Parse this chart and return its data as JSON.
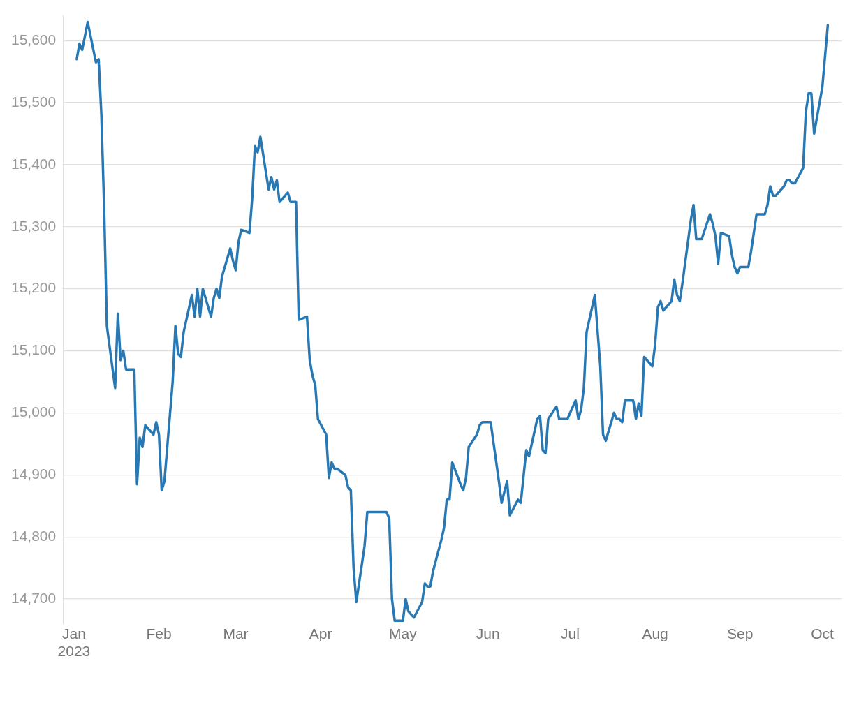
{
  "chart_data": {
    "type": "line",
    "x": [
      "2023-01-02",
      "2023-01-03",
      "2023-01-04",
      "2023-01-06",
      "2023-01-09",
      "2023-01-10",
      "2023-01-11",
      "2023-01-12",
      "2023-01-13",
      "2023-01-16",
      "2023-01-17",
      "2023-01-18",
      "2023-01-19",
      "2023-01-20",
      "2023-01-23",
      "2023-01-24",
      "2023-01-25",
      "2023-01-26",
      "2023-01-27",
      "2023-01-30",
      "2023-01-31",
      "2023-02-01",
      "2023-02-02",
      "2023-02-03",
      "2023-02-06",
      "2023-02-07",
      "2023-02-08",
      "2023-02-09",
      "2023-02-10",
      "2023-02-13",
      "2023-02-14",
      "2023-02-15",
      "2023-02-16",
      "2023-02-17",
      "2023-02-20",
      "2023-02-21",
      "2023-02-22",
      "2023-02-23",
      "2023-02-24",
      "2023-02-27",
      "2023-02-28",
      "2023-03-01",
      "2023-03-02",
      "2023-03-03",
      "2023-03-06",
      "2023-03-07",
      "2023-03-08",
      "2023-03-09",
      "2023-03-10",
      "2023-03-13",
      "2023-03-14",
      "2023-03-15",
      "2023-03-16",
      "2023-03-17",
      "2023-03-20",
      "2023-03-21",
      "2023-03-23",
      "2023-03-24",
      "2023-03-27",
      "2023-03-28",
      "2023-03-29",
      "2023-03-30",
      "2023-03-31",
      "2023-04-03",
      "2023-04-04",
      "2023-04-05",
      "2023-04-06",
      "2023-04-07",
      "2023-04-10",
      "2023-04-11",
      "2023-04-12",
      "2023-04-13",
      "2023-04-14",
      "2023-04-17",
      "2023-04-18",
      "2023-04-19",
      "2023-04-25",
      "2023-04-26",
      "2023-04-27",
      "2023-04-28",
      "2023-05-01",
      "2023-05-02",
      "2023-05-03",
      "2023-05-05",
      "2023-05-08",
      "2023-05-09",
      "2023-05-10",
      "2023-05-11",
      "2023-05-12",
      "2023-05-15",
      "2023-05-16",
      "2023-05-17",
      "2023-05-18",
      "2023-05-19",
      "2023-05-22",
      "2023-05-23",
      "2023-05-24",
      "2023-05-25",
      "2023-05-28",
      "2023-05-29",
      "2023-05-30",
      "2023-06-02",
      "2023-06-05",
      "2023-06-06",
      "2023-06-08",
      "2023-06-09",
      "2023-06-12",
      "2023-06-13",
      "2023-06-15",
      "2023-06-16",
      "2023-06-19",
      "2023-06-20",
      "2023-06-21",
      "2023-06-22",
      "2023-06-23",
      "2023-06-26",
      "2023-06-27",
      "2023-06-30",
      "2023-07-03",
      "2023-07-04",
      "2023-07-05",
      "2023-07-06",
      "2023-07-07",
      "2023-07-10",
      "2023-07-12",
      "2023-07-13",
      "2023-07-14",
      "2023-07-17",
      "2023-07-18",
      "2023-07-19",
      "2023-07-20",
      "2023-07-21",
      "2023-07-24",
      "2023-07-25",
      "2023-07-26",
      "2023-07-27",
      "2023-07-28",
      "2023-07-31",
      "2023-08-01",
      "2023-08-02",
      "2023-08-03",
      "2023-08-04",
      "2023-08-07",
      "2023-08-08",
      "2023-08-09",
      "2023-08-10",
      "2023-08-11",
      "2023-08-14",
      "2023-08-15",
      "2023-08-16",
      "2023-08-17",
      "2023-08-18",
      "2023-08-21",
      "2023-08-22",
      "2023-08-23",
      "2023-08-24",
      "2023-08-25",
      "2023-08-28",
      "2023-08-29",
      "2023-08-30",
      "2023-08-31",
      "2023-09-01",
      "2023-09-04",
      "2023-09-05",
      "2023-09-07",
      "2023-09-10",
      "2023-09-11",
      "2023-09-12",
      "2023-09-13",
      "2023-09-14",
      "2023-09-17",
      "2023-09-18",
      "2023-09-19",
      "2023-09-20",
      "2023-09-21",
      "2023-09-24",
      "2023-09-25",
      "2023-09-26",
      "2023-09-27",
      "2023-09-28",
      "2023-10-01",
      "2023-10-03"
    ],
    "series": [
      {
        "color": "#2878b4",
        "values": [
          15570,
          15595,
          15585,
          15630,
          15565,
          15570,
          15480,
          15330,
          15140,
          15040,
          15160,
          15085,
          15100,
          15070,
          15070,
          14885,
          14960,
          14945,
          14980,
          14965,
          14985,
          14965,
          14875,
          14890,
          15050,
          15140,
          15095,
          15090,
          15130,
          15190,
          15155,
          15200,
          15155,
          15200,
          15155,
          15185,
          15200,
          15185,
          15220,
          15265,
          15245,
          15230,
          15275,
          15295,
          15290,
          15345,
          15430,
          15420,
          15445,
          15360,
          15380,
          15360,
          15375,
          15340,
          15355,
          15340,
          15340,
          15150,
          15155,
          15085,
          15060,
          15045,
          14990,
          14965,
          14895,
          14920,
          14910,
          14910,
          14900,
          14880,
          14875,
          14750,
          14695,
          14785,
          14840,
          14840,
          14840,
          14830,
          14700,
          14665,
          14665,
          14700,
          14680,
          14670,
          14695,
          14725,
          14720,
          14720,
          14745,
          14795,
          14815,
          14860,
          14860,
          14920,
          14885,
          14875,
          14895,
          14945,
          14965,
          14980,
          14985,
          14985,
          14890,
          14855,
          14890,
          14835,
          14860,
          14855,
          14940,
          14930,
          14990,
          14995,
          14940,
          14935,
          14990,
          15010,
          14990,
          14990,
          15020,
          14990,
          15005,
          15040,
          15130,
          15190,
          15075,
          14965,
          14955,
          15000,
          14990,
          14990,
          14985,
          15020,
          15020,
          14990,
          15015,
          14995,
          15090,
          15075,
          15110,
          15170,
          15180,
          15165,
          15180,
          15215,
          15190,
          15180,
          15210,
          15310,
          15335,
          15280,
          15280,
          15280,
          15320,
          15305,
          15285,
          15240,
          15290,
          15285,
          15255,
          15235,
          15225,
          15235,
          15235,
          15260,
          15320,
          15320,
          15335,
          15365,
          15350,
          15350,
          15365,
          15375,
          15375,
          15370,
          15370,
          15395,
          15485,
          15515,
          15515,
          15450,
          15525,
          15625
        ]
      }
    ],
    "xlim": [
      "2022-12-28",
      "2023-10-08"
    ],
    "xticks": [
      {
        "value": "2023-01-01",
        "label": "Jan\n2023"
      },
      {
        "value": "2023-02-01",
        "label": "Feb"
      },
      {
        "value": "2023-03-01",
        "label": "Mar"
      },
      {
        "value": "2023-04-01",
        "label": "Apr"
      },
      {
        "value": "2023-05-01",
        "label": "May"
      },
      {
        "value": "2023-06-01",
        "label": "Jun"
      },
      {
        "value": "2023-07-01",
        "label": "Jul"
      },
      {
        "value": "2023-08-01",
        "label": "Aug"
      },
      {
        "value": "2023-09-01",
        "label": "Sep"
      },
      {
        "value": "2023-10-01",
        "label": "Oct"
      }
    ],
    "ylim": [
      14660,
      15640
    ],
    "yticks": [
      {
        "value": 14700,
        "label": "14,700"
      },
      {
        "value": 14800,
        "label": "14,800"
      },
      {
        "value": 14900,
        "label": "14,900"
      },
      {
        "value": 15000,
        "label": "15,000"
      },
      {
        "value": 15100,
        "label": "15,100"
      },
      {
        "value": 15200,
        "label": "15,200"
      },
      {
        "value": 15300,
        "label": "15,300"
      },
      {
        "value": 15400,
        "label": "15,400"
      },
      {
        "value": 15500,
        "label": "15,500"
      },
      {
        "value": 15600,
        "label": "15,600"
      }
    ],
    "grid": "y",
    "legend": false,
    "marker": "none",
    "line_style": "solid"
  }
}
